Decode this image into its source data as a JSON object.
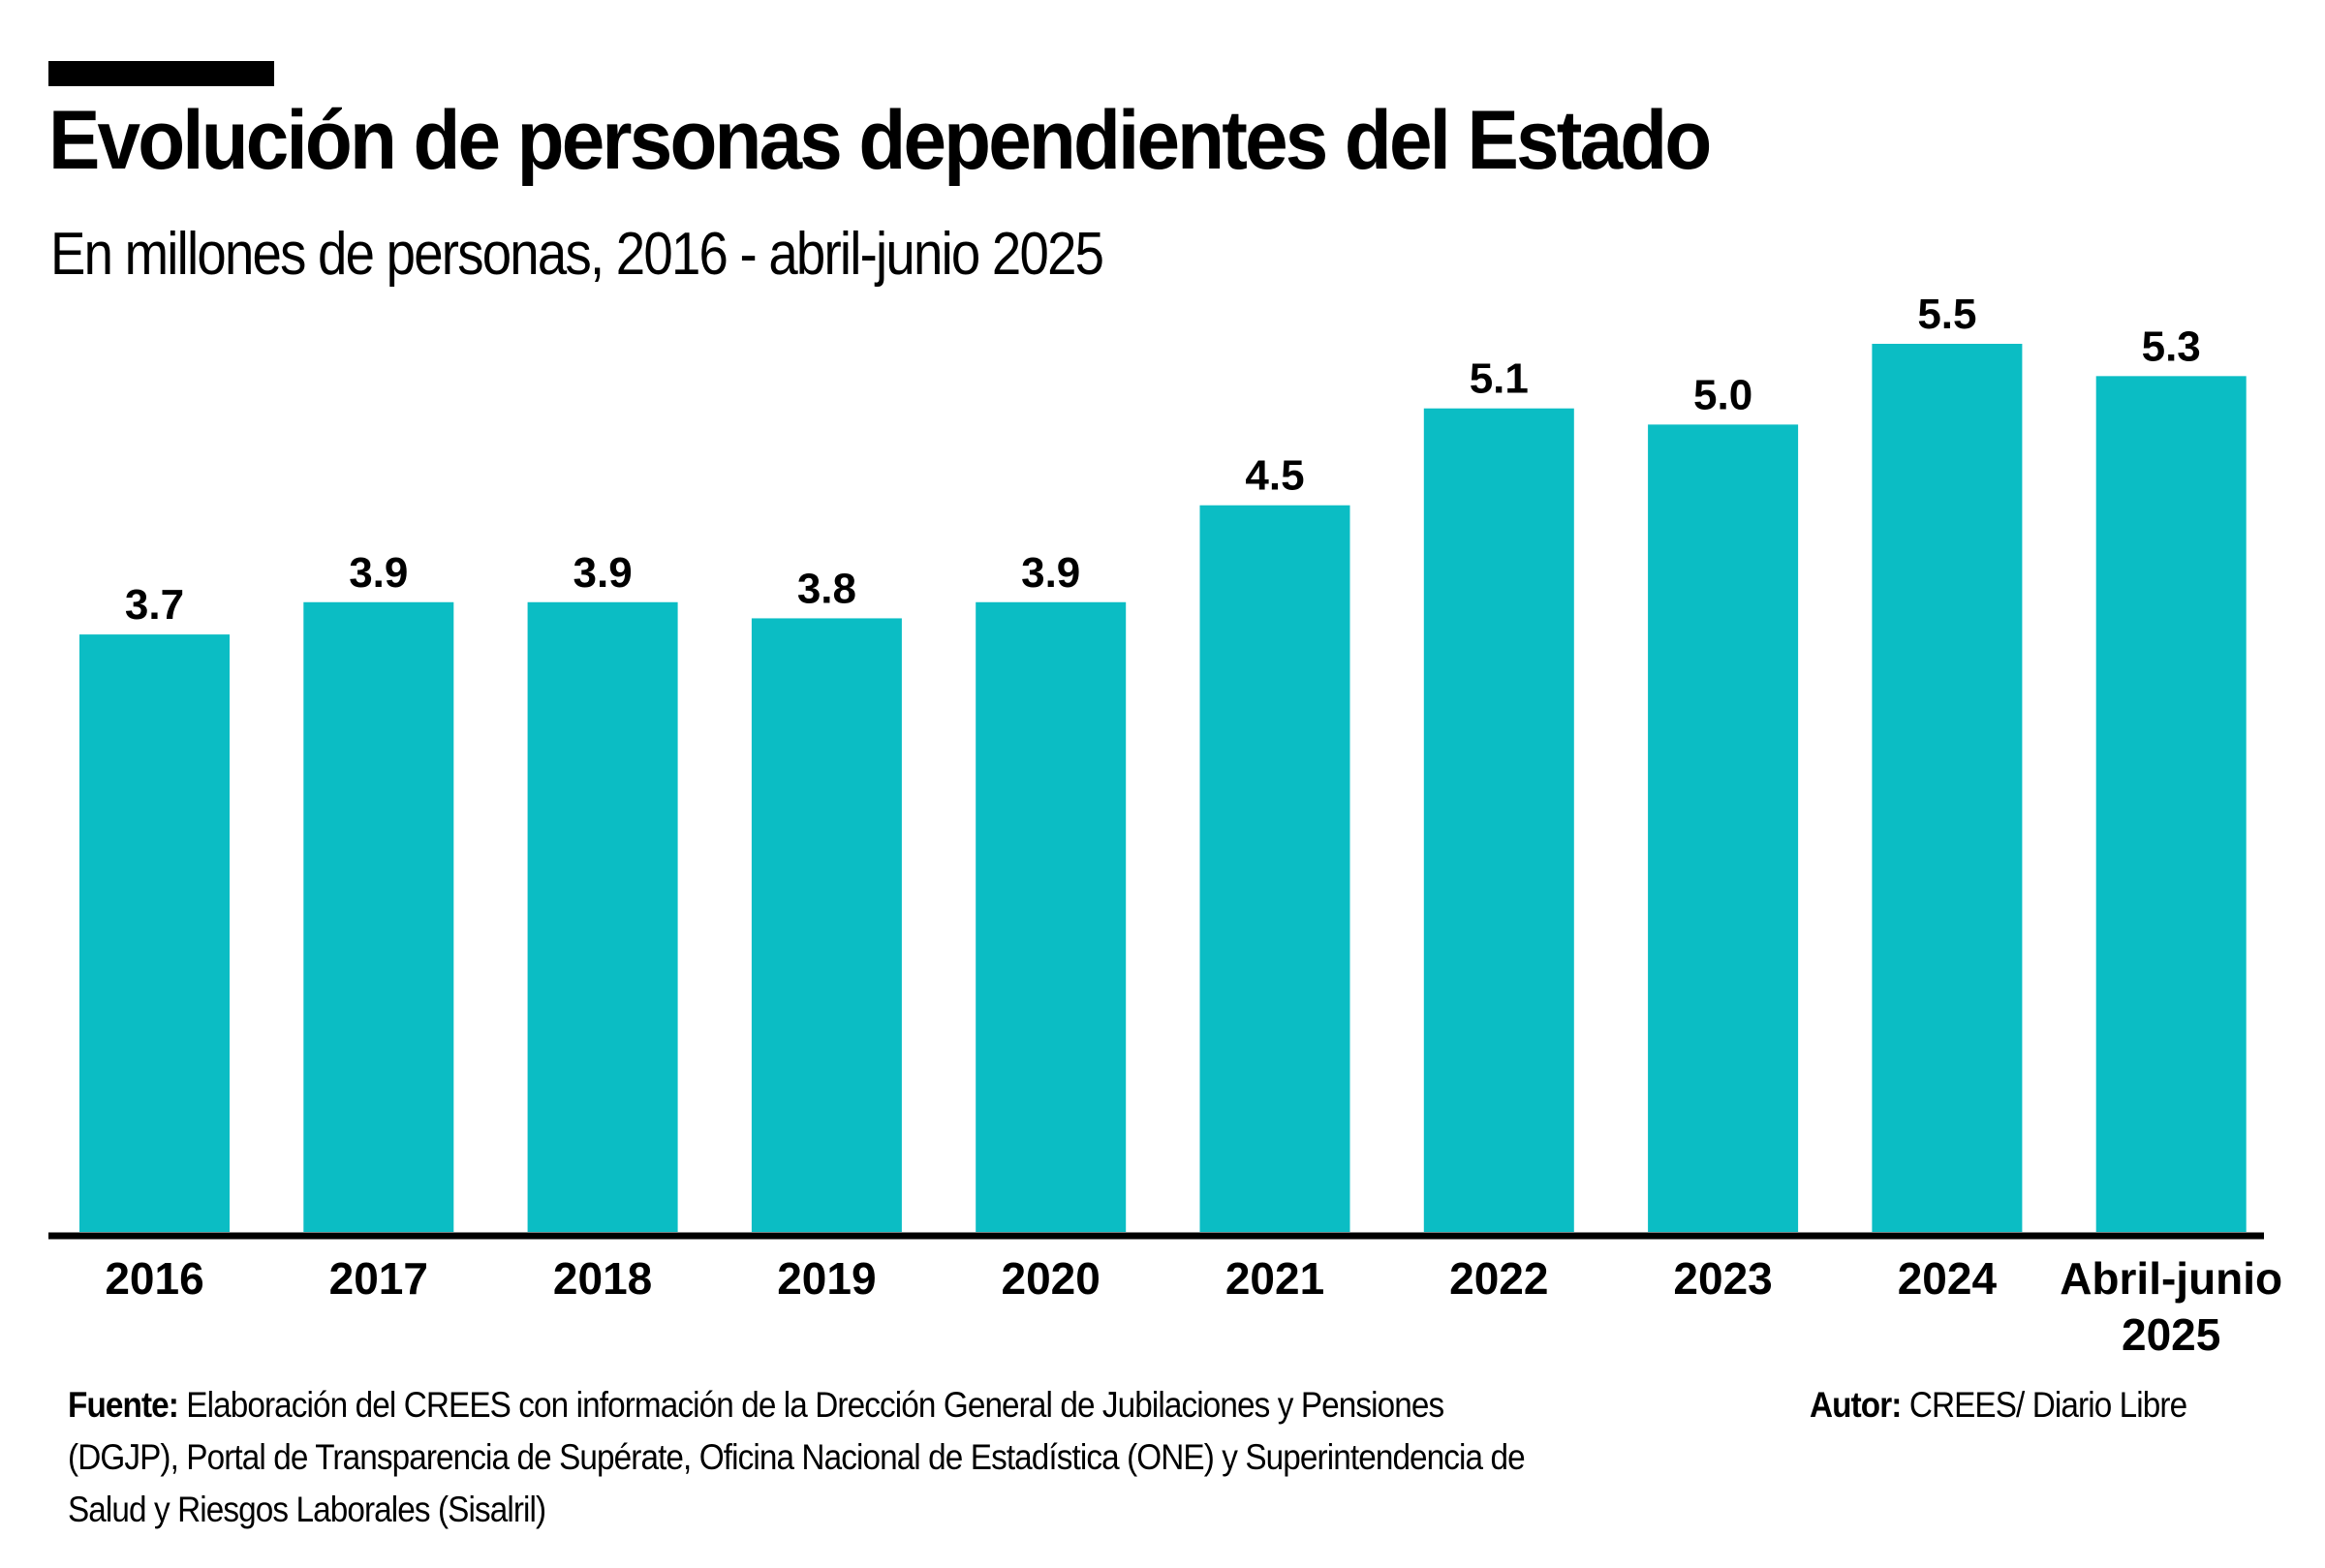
{
  "header": {
    "title": "Evolución de personas dependientes del Estado",
    "subtitle": "En millones de personas, 2016 - abril-junio 2025"
  },
  "colors": {
    "bar": "#0BBDC4",
    "axis": "#000000",
    "text": "#000000"
  },
  "footer": {
    "source_label": "Fuente:",
    "source_text": "Elaboración del CREES con información de la Drección General de Jubilaciones y Pensiones (DGJP), Portal de Transparencia de Supérate, Oficina Nacional de Estadística (ONE) y Superintendencia de Salud y Riesgos Laborales (Sisalril)",
    "author_label": "Autor:",
    "author_text": "CREES/ Diario Libre"
  },
  "chart_data": {
    "type": "bar",
    "title": "Evolución de personas dependientes del Estado",
    "subtitle": "En millones de personas, 2016 - abril-junio 2025",
    "xlabel": "",
    "ylabel": "Millones de personas",
    "categories": [
      "2016",
      "2017",
      "2018",
      "2019",
      "2020",
      "2021",
      "2022",
      "2023",
      "2024",
      "Abril-junio 2025"
    ],
    "category_lines": [
      [
        "2016"
      ],
      [
        "2017"
      ],
      [
        "2018"
      ],
      [
        "2019"
      ],
      [
        "2020"
      ],
      [
        "2021"
      ],
      [
        "2022"
      ],
      [
        "2023"
      ],
      [
        "2024"
      ],
      [
        "Abril-junio",
        "2025"
      ]
    ],
    "values": [
      3.7,
      3.9,
      3.9,
      3.8,
      3.9,
      4.5,
      5.1,
      5.0,
      5.5,
      5.3
    ],
    "value_labels": [
      "3.7",
      "3.9",
      "3.9",
      "3.8",
      "3.9",
      "4.5",
      "5.1",
      "5.0",
      "5.5",
      "5.3"
    ],
    "ylim": [
      0,
      5.5
    ],
    "grid": false,
    "legend": "none",
    "y_axis_visible": false
  }
}
